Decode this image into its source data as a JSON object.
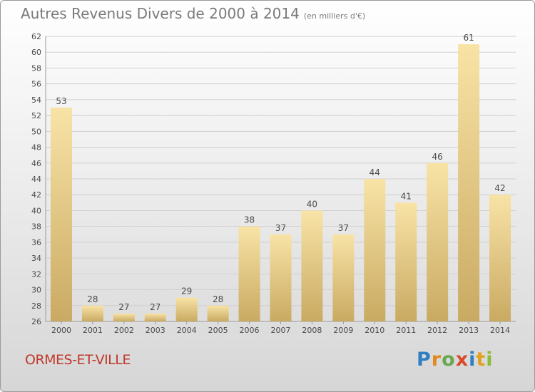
{
  "header": {
    "title": "Autres Revenus Divers de 2000 à 2014",
    "subtitle": "(en milliers d'€)"
  },
  "footer": {
    "commune": "ORMES-ET-VILLE",
    "logo": "Proxiti"
  },
  "colors": {
    "bar_light": "#f8e3a6",
    "bar_dark": "#c9aa62",
    "grid": "#cfcfcf",
    "axis_text": "#4a4a4a",
    "commune": "#c0392b"
  },
  "chart_data": {
    "type": "bar",
    "title": "Autres Revenus Divers de 2000 à 2014",
    "subtitle": "(en milliers d'€)",
    "xlabel": "",
    "ylabel": "",
    "categories": [
      "2000",
      "2001",
      "2002",
      "2003",
      "2004",
      "2005",
      "2006",
      "2007",
      "2008",
      "2009",
      "2010",
      "2011",
      "2012",
      "2013",
      "2014"
    ],
    "values": [
      53,
      28,
      27,
      27,
      29,
      28,
      38,
      37,
      40,
      37,
      44,
      41,
      46,
      61,
      42
    ],
    "ylim": [
      26,
      62
    ],
    "yticks": [
      26,
      28,
      30,
      32,
      34,
      36,
      38,
      40,
      42,
      44,
      46,
      48,
      50,
      52,
      54,
      56,
      58,
      60,
      62
    ],
    "grid": true,
    "data_labels": true
  }
}
